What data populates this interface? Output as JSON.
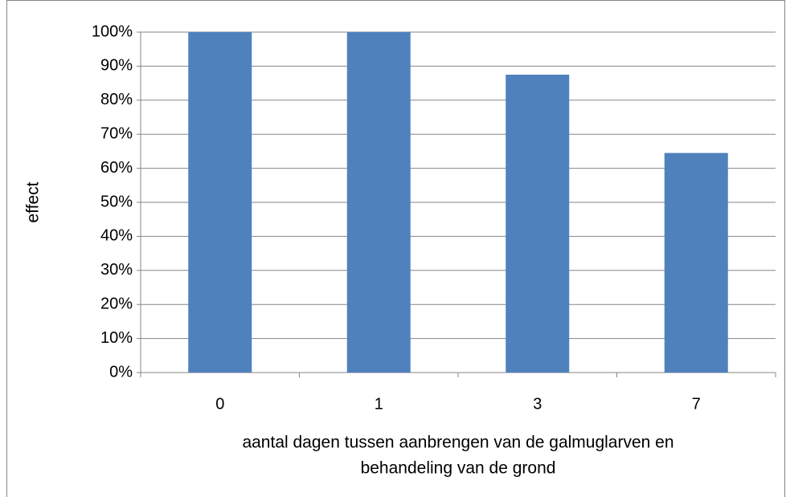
{
  "chart_data": {
    "type": "bar",
    "categories": [
      "0",
      "1",
      "3",
      "7"
    ],
    "values": [
      100,
      100,
      87.5,
      64.5
    ],
    "color": "#4f81bd",
    "ylabel": "effect",
    "xlabel": [
      "aantal dagen tussen aanbrengen van de galmuglarven en",
      "behandeling van de grond"
    ],
    "ylim": [
      0,
      100
    ],
    "yticks": [
      {
        "value": 0,
        "label": "0%"
      },
      {
        "value": 10,
        "label": "10%"
      },
      {
        "value": 20,
        "label": "20%"
      },
      {
        "value": 30,
        "label": "30%"
      },
      {
        "value": 40,
        "label": "40%"
      },
      {
        "value": 50,
        "label": "50%"
      },
      {
        "value": 60,
        "label": "60%"
      },
      {
        "value": 70,
        "label": "70%"
      },
      {
        "value": 80,
        "label": "80%"
      },
      {
        "value": 90,
        "label": "90%"
      },
      {
        "value": 100,
        "label": "100%"
      }
    ],
    "grid": true
  }
}
